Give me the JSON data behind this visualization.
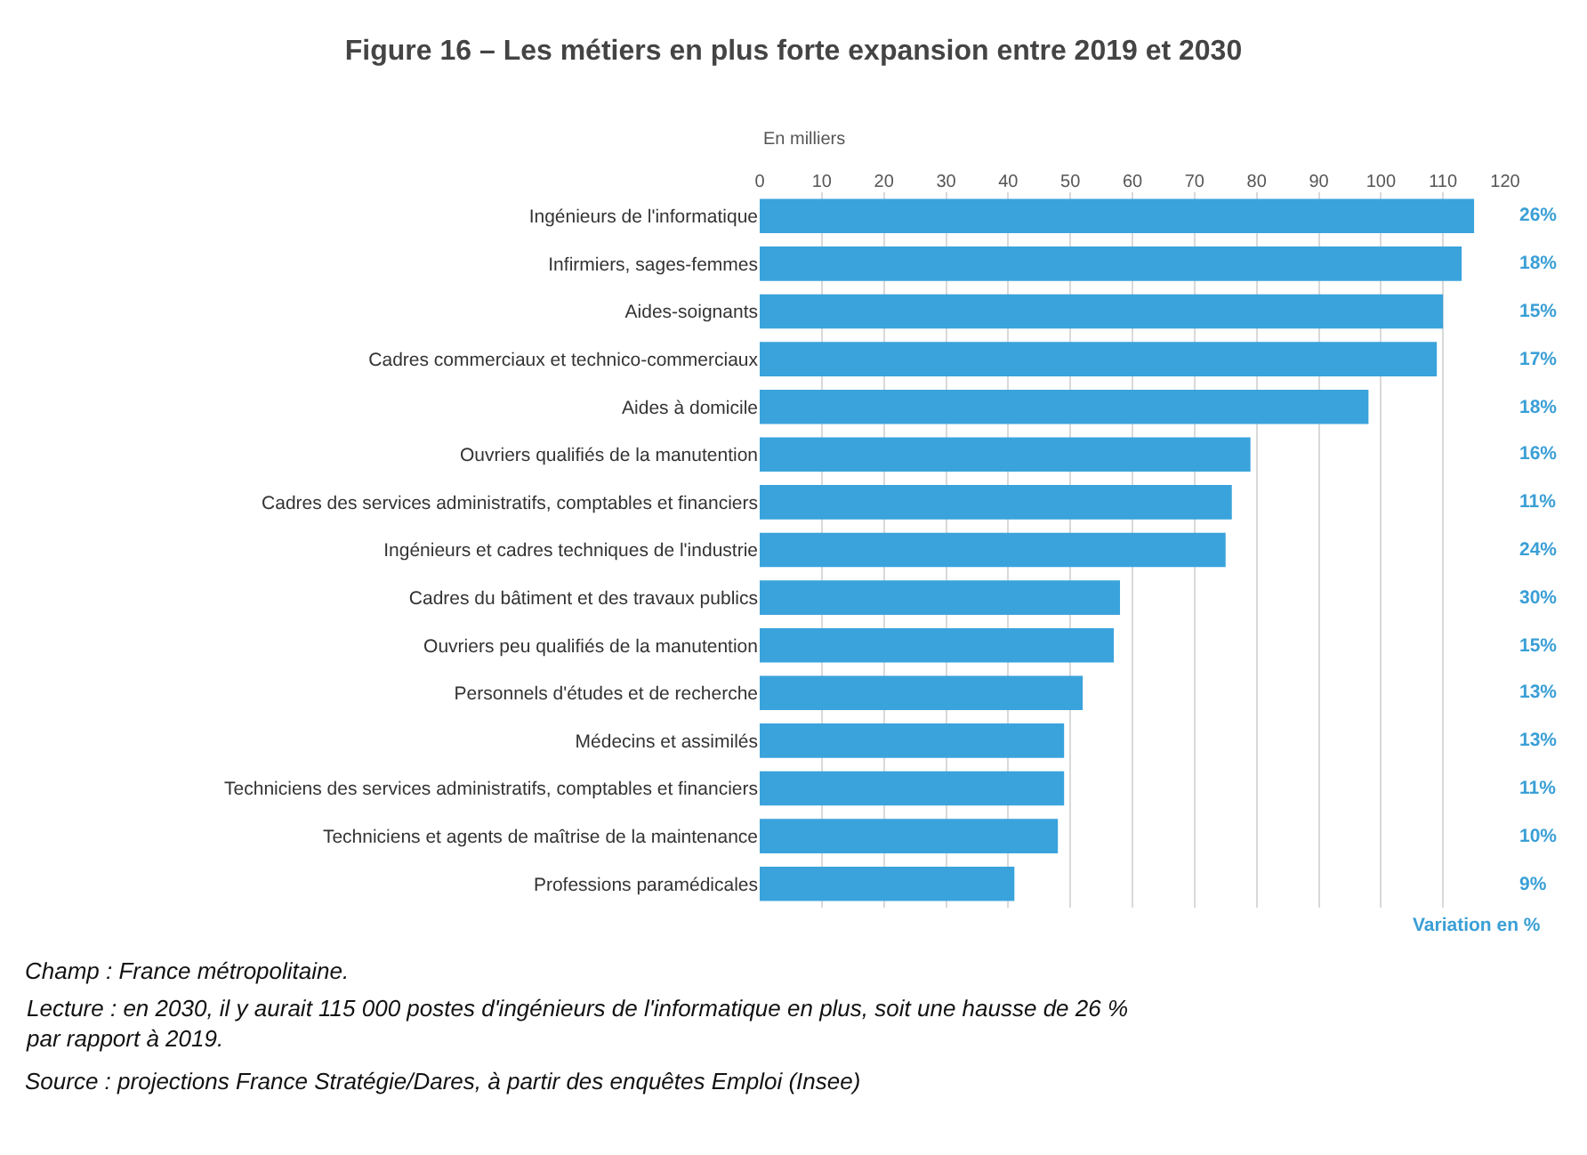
{
  "chart_data": {
    "type": "bar",
    "orientation": "horizontal",
    "title": "Figure 16 – Les métiers en plus forte expansion entre 2019 et 2030",
    "xlabel": "En milliers",
    "categories": [
      "Ingénieurs de l'informatique",
      "Infirmiers, sages-femmes",
      "Aides-soignants",
      "Cadres commerciaux et technico-commerciaux",
      "Aides à domicile",
      "Ouvriers qualifiés de la manutention",
      "Cadres des services administratifs, comptables et financiers",
      "Ingénieurs et cadres techniques de l'industrie",
      "Cadres du bâtiment et des travaux publics",
      "Ouvriers peu qualifiés de la manutention",
      "Personnels d'études et de recherche",
      "Médecins et assimilés",
      "Techniciens des services administratifs, comptables et financiers",
      "Techniciens et agents de maîtrise de la maintenance",
      "Professions paramédicales"
    ],
    "values": [
      115,
      113,
      110,
      109,
      98,
      79,
      76,
      75,
      58,
      57,
      52,
      49,
      49,
      48,
      41
    ],
    "color": "#3aa3dc",
    "xlim": [
      0,
      120
    ],
    "xticks": [
      0,
      10,
      20,
      30,
      40,
      50,
      60,
      70,
      80,
      90,
      100,
      110,
      120
    ],
    "grid": "x",
    "annotations": [
      "26%",
      "18%",
      "15%",
      "17%",
      "18%",
      "16%",
      "11%",
      "24%",
      "30%",
      "15%",
      "13%",
      "13%",
      "11%",
      "10%",
      "9%",
      "Variation en %",
      "Champ : France métropolitaine.",
      "Lecture : en 2030, il y aurait 115 000 postes d'ingénieurs de l'informatique en plus, soit une hausse de 26 % par rapport à 2019.",
      "Source : projections France Stratégie/Dares, à partir des enquêtes Emploi (Insee)"
    ]
  }
}
